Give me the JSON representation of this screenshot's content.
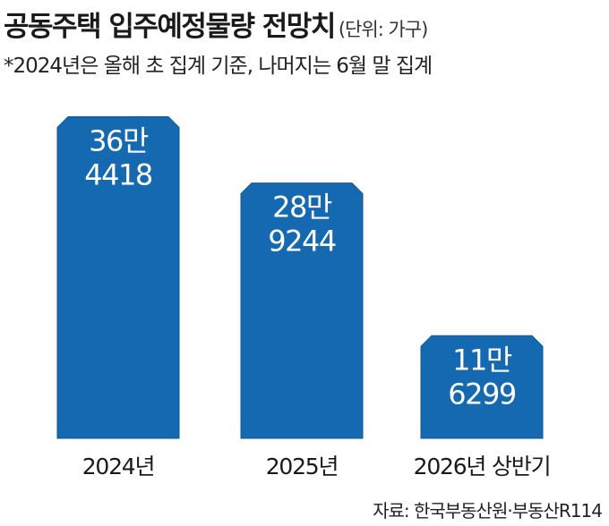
{
  "title": "공동주택 입주예정물량 전망치",
  "unit": "(단위: 가구)",
  "note": "*2024년은 올해 초 집계 기준, 나머지는 6월 말 집계",
  "source": "자료: 한국부동산원·부동산R114",
  "colors": {
    "bar": "#1569b0",
    "bar_edge": "#0f5796",
    "label": "#ffffff",
    "text": "#1a1a1a"
  },
  "chart_data": {
    "type": "bar",
    "categories": [
      "2024년",
      "2025년",
      "2026년 상반기"
    ],
    "values": [
      364418,
      289244,
      116299
    ],
    "value_labels": [
      [
        "36만",
        "4418"
      ],
      [
        "28만",
        "9244"
      ],
      [
        "11만",
        "6299"
      ]
    ],
    "title": "공동주택 입주예정물량 전망치",
    "xlabel": "",
    "ylabel": "",
    "ylim": [
      0,
      375000
    ],
    "grid": false,
    "legend": "none"
  }
}
